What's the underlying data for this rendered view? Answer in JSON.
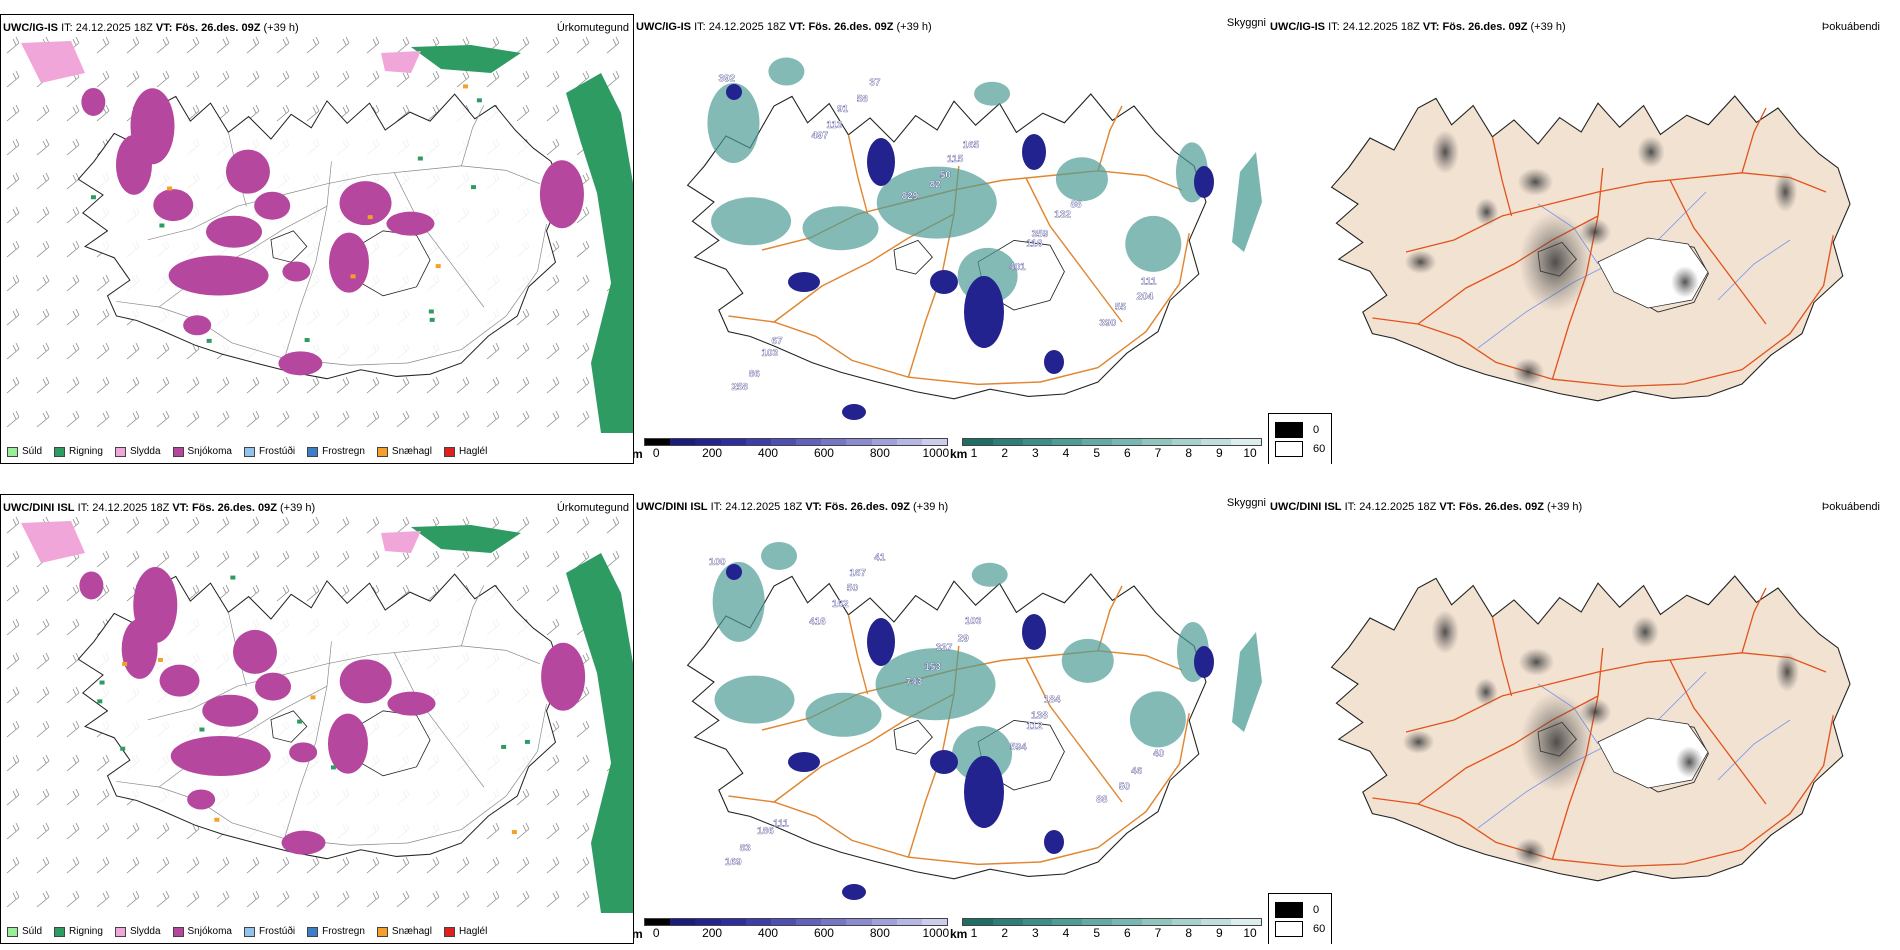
{
  "rows": [
    {
      "model": "UWC/IG-IS",
      "it_label": "IT:",
      "it_value": "24.12.2025 18Z",
      "vt_label": "VT:",
      "vt_value": "Fös. 26.des. 09Z",
      "lead": "(+39 h)",
      "cloud_labels": [
        "392",
        "497",
        "829",
        "401",
        "390",
        "258",
        "113",
        "82",
        "116",
        "55",
        "86",
        "91",
        "50",
        "359",
        "204",
        "103",
        "58",
        "115",
        "132",
        "111",
        "67",
        "37",
        "165",
        "88"
      ]
    },
    {
      "model": "UWC/DINI ISL",
      "it_label": "IT:",
      "it_value": "24.12.2025 18Z",
      "vt_label": "VT:",
      "vt_value": "Fös. 26.des. 09Z",
      "lead": "(+39 h)",
      "cloud_labels": [
        "100",
        "416",
        "743",
        "594",
        "88",
        "169",
        "162",
        "153",
        "112",
        "50",
        "83",
        "50",
        "337",
        "138",
        "46",
        "186",
        "167",
        "29",
        "184",
        "40",
        "111",
        "41",
        "103"
      ]
    }
  ],
  "field_titles": {
    "precip": "Úrkomutegund",
    "cloud": "Skyggni",
    "fog": "Þokuábendi"
  },
  "precip_legend": [
    {
      "label": "Súld",
      "color": "#99ee99"
    },
    {
      "label": "Rigning",
      "color": "#2e9b62"
    },
    {
      "label": "Slydda",
      "color": "#f0a6d8"
    },
    {
      "label": "Snjókoma",
      "color": "#b5489e"
    },
    {
      "label": "Frostúði",
      "color": "#92c3ee"
    },
    {
      "label": "Frostregn",
      "color": "#3a7fc8"
    },
    {
      "label": "Snæhagl",
      "color": "#f3a12b"
    },
    {
      "label": "Haglél",
      "color": "#e11f1f"
    }
  ],
  "ceiling_scale": {
    "unit": "m",
    "ticks": [
      "0",
      "200",
      "400",
      "600",
      "800",
      "1000"
    ],
    "colors": [
      "#000000",
      "#1c1c7a",
      "#23238f",
      "#2e2e9e",
      "#3d3daa",
      "#4f4fb3",
      "#6262bd",
      "#7676c7",
      "#8a8ad1",
      "#a0a0db",
      "#b6b6e4",
      "#ccccee"
    ]
  },
  "visibility_scale": {
    "unit": "km",
    "ticks": [
      "1",
      "2",
      "3",
      "4",
      "5",
      "6",
      "7",
      "8",
      "9",
      "10"
    ],
    "colors": [
      "#1f6e66",
      "#2c7f77",
      "#3b8f87",
      "#4e9d95",
      "#62aaa3",
      "#78b7b1",
      "#8fc4bf",
      "#a7d1cd",
      "#c0dfdc",
      "#dbedec"
    ]
  },
  "fog_legend": [
    {
      "label": "0",
      "color": "#000000"
    },
    {
      "label": "60",
      "color": "#ffffff"
    }
  ],
  "colors": {
    "land_fog": "#f2e2d2",
    "roads": "#e2541e",
    "roads_cloud": "#e08630",
    "rivers": "#7799ee",
    "rain": "#2e9b62",
    "snow": "#b5489e",
    "sleet": "#f0a6d8",
    "cloud_low": "#23238f",
    "cloud_vis": "#4e9d95"
  }
}
